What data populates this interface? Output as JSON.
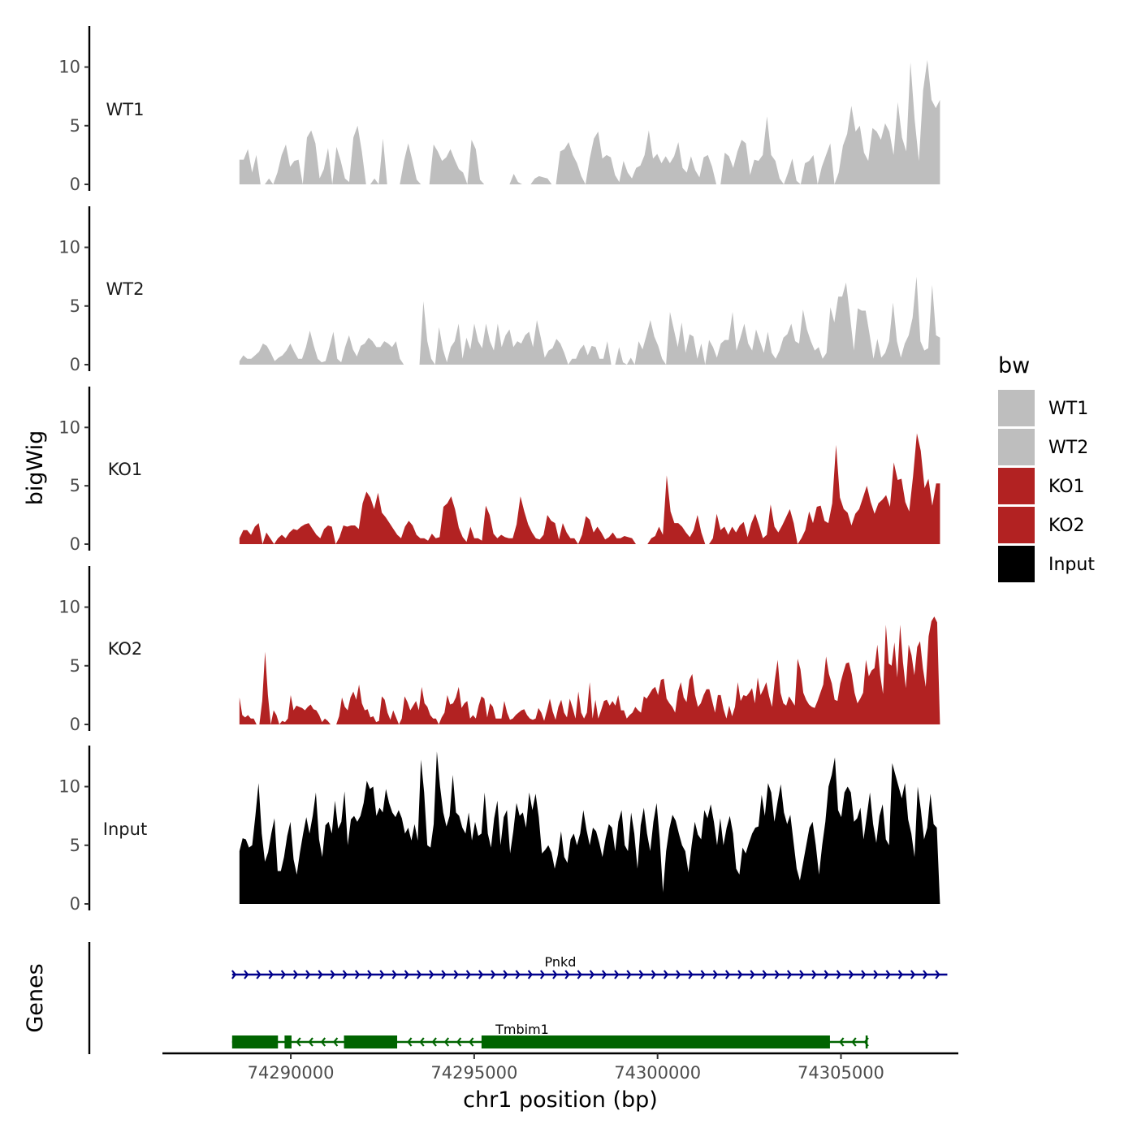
{
  "chart_data": {
    "type": "area",
    "ylabel": "bigWig",
    "xlabel": "chr1 position (bp)",
    "genes_label": "Genes",
    "xlim": [
      74286500,
      74308200
    ],
    "data_xrange": [
      74288600,
      74307700
    ],
    "ylim": [
      0,
      13.5
    ],
    "y_ticks": [
      0,
      5,
      10
    ],
    "y_tick_labels": [
      "0",
      "5",
      "10"
    ],
    "x_ticks": [
      74290000,
      74295000,
      74300000,
      74305000
    ],
    "x_tick_labels": [
      "74290000",
      "74295000",
      "74300000",
      "74305000"
    ],
    "series": [
      {
        "name": "WT1",
        "color": "#bebebe",
        "values": [
          2.1,
          2.1,
          3.0,
          1.0,
          2.5,
          0.0,
          0.0,
          0.5,
          0.0,
          1.0,
          2.5,
          3.4,
          1.5,
          2.0,
          2.1,
          0.0,
          4.0,
          4.6,
          3.5,
          0.5,
          1.3,
          3.1,
          0.0,
          3.2,
          2.0,
          0.5,
          0.2,
          4.0,
          5.0,
          2.8,
          0.0,
          0.0,
          0.5,
          0.0,
          3.9,
          0.0,
          0.0,
          0.0,
          0.0,
          2.0,
          3.5,
          2.0,
          0.4,
          0.0,
          0.0,
          0.0,
          3.4,
          2.8,
          2.0,
          2.3,
          3.0,
          2.1,
          1.3,
          1.0,
          0.0,
          3.8,
          3.0,
          0.4,
          0.0,
          0.0,
          0.0,
          0.0,
          0.0,
          0.0,
          0.0,
          0.9,
          0.2,
          0.0,
          0.0,
          0.0,
          0.5,
          0.7,
          0.6,
          0.5,
          0.0,
          0.0,
          2.8,
          3.0,
          3.6,
          2.5,
          1.8,
          0.7,
          0.0,
          2.2,
          3.9,
          4.5,
          2.2,
          2.5,
          2.3,
          0.8,
          0.2,
          2.0,
          1.0,
          0.5,
          1.4,
          1.6,
          2.5,
          4.6,
          2.2,
          2.6,
          1.8,
          2.4,
          1.8,
          2.4,
          3.6,
          1.4,
          1.0,
          2.4,
          1.2,
          0.6,
          2.3,
          2.5,
          1.5,
          0.0,
          0.0,
          2.7,
          2.4,
          1.4,
          2.8,
          3.8,
          3.5,
          0.8,
          2.1,
          2.0,
          2.5,
          5.8,
          2.5,
          2.0,
          0.5,
          0.0,
          1.0,
          2.2,
          0.3,
          0.0,
          1.8,
          2.0,
          2.5,
          0.0,
          1.5,
          2.5,
          3.5,
          0.0,
          1.0,
          3.3,
          4.3,
          6.7,
          4.5,
          5.0,
          2.7,
          2.0,
          4.8,
          4.5,
          3.8,
          5.2,
          4.5,
          2.5,
          7.0,
          4.0,
          2.8,
          10.4,
          5.5,
          2.0,
          8.0,
          10.6,
          7.2,
          6.5,
          7.2
        ]
      },
      {
        "name": "WT2",
        "color": "#bebebe",
        "values": [
          0.3,
          0.8,
          0.5,
          0.5,
          0.8,
          1.1,
          1.8,
          1.6,
          1.0,
          0.3,
          0.6,
          0.8,
          1.2,
          1.8,
          1.1,
          0.5,
          0.5,
          1.5,
          2.9,
          1.6,
          0.5,
          0.2,
          0.3,
          1.5,
          2.8,
          0.5,
          0.2,
          1.5,
          2.5,
          1.3,
          0.7,
          1.6,
          1.8,
          2.3,
          2.0,
          1.5,
          1.5,
          2.0,
          1.8,
          1.5,
          2.0,
          0.5,
          0.0,
          0.0,
          0.0,
          0.0,
          0.0,
          5.4,
          2.0,
          0.5,
          0.0,
          3.2,
          1.3,
          0.2,
          1.5,
          2.0,
          3.5,
          0.5,
          2.3,
          1.3,
          3.5,
          2.0,
          1.4,
          3.5,
          2.0,
          1.2,
          3.5,
          1.5,
          2.5,
          3.0,
          1.5,
          2.0,
          1.8,
          2.5,
          2.8,
          1.5,
          3.8,
          2.3,
          0.6,
          1.2,
          1.4,
          2.2,
          1.8,
          1.0,
          0.0,
          0.5,
          0.5,
          1.3,
          1.7,
          0.8,
          1.6,
          1.5,
          0.5,
          0.5,
          2.0,
          0.0,
          0.0,
          1.5,
          0.2,
          0.0,
          0.6,
          0.0,
          2.0,
          1.3,
          2.5,
          3.8,
          2.4,
          1.6,
          0.5,
          0.0,
          4.5,
          3.0,
          1.5,
          3.6,
          1.0,
          2.6,
          2.4,
          0.5,
          1.8,
          0.0,
          2.1,
          1.5,
          0.6,
          1.8,
          2.1,
          2.1,
          4.5,
          1.2,
          2.3,
          3.5,
          1.8,
          1.2,
          3.0,
          2.0,
          1.0,
          2.8,
          1.0,
          0.5,
          1.2,
          2.3,
          2.6,
          3.5,
          2.0,
          1.8,
          4.7,
          3.0,
          2.0,
          1.2,
          1.5,
          0.5,
          1.0,
          4.9,
          3.6,
          5.8,
          5.8,
          7.0,
          4.2,
          1.2,
          4.8,
          4.6,
          4.6,
          2.6,
          0.5,
          2.2,
          0.6,
          1.0,
          2.0,
          5.3,
          2.0,
          0.6,
          1.8,
          2.5,
          4.0,
          7.5,
          2.0,
          1.2,
          1.4,
          6.8,
          2.5,
          2.3
        ]
      },
      {
        "name": "KO1",
        "color": "#b22222",
        "values": [
          0.5,
          1.2,
          1.2,
          0.8,
          1.5,
          1.8,
          0.0,
          1.0,
          0.5,
          0.0,
          0.5,
          0.8,
          0.5,
          1.0,
          1.3,
          1.2,
          1.5,
          1.7,
          1.8,
          1.3,
          0.8,
          0.5,
          1.3,
          1.6,
          1.5,
          0.0,
          0.6,
          1.6,
          1.5,
          1.6,
          1.6,
          1.3,
          3.5,
          4.5,
          4.0,
          3.0,
          4.4,
          2.7,
          2.3,
          1.8,
          1.3,
          0.8,
          0.5,
          1.5,
          2.0,
          1.6,
          0.8,
          0.5,
          0.5,
          0.3,
          0.9,
          0.5,
          0.6,
          3.2,
          3.5,
          4.1,
          3.0,
          1.4,
          0.6,
          0.2,
          1.5,
          0.5,
          0.5,
          0.3,
          3.3,
          2.5,
          0.9,
          0.5,
          0.8,
          0.6,
          0.5,
          0.5,
          1.7,
          4.1,
          2.8,
          1.7,
          1.0,
          0.5,
          0.4,
          0.8,
          2.5,
          2.0,
          1.8,
          0.4,
          1.8,
          1.0,
          0.5,
          0.5,
          0.0,
          0.8,
          2.4,
          2.1,
          1.0,
          1.5,
          1.0,
          0.4,
          0.6,
          1.0,
          0.5,
          0.5,
          0.7,
          0.6,
          0.5,
          0.0,
          0.0,
          0.0,
          0.0,
          0.5,
          0.7,
          1.5,
          0.8,
          5.9,
          2.8,
          1.8,
          1.8,
          1.5,
          1.0,
          0.6,
          1.2,
          2.5,
          1.0,
          0.0,
          0.0,
          0.5,
          2.6,
          1.2,
          1.5,
          0.8,
          1.5,
          1.0,
          1.6,
          1.9,
          0.6,
          1.8,
          2.6,
          1.6,
          0.5,
          0.8,
          3.4,
          1.5,
          1.0,
          1.6,
          2.3,
          3.0,
          1.8,
          0.0,
          0.5,
          1.2,
          2.8,
          1.8,
          3.2,
          3.3,
          2.0,
          1.8,
          3.5,
          8.5,
          4.0,
          3.0,
          2.7,
          1.6,
          2.6,
          3.0,
          4.0,
          5.0,
          3.6,
          2.6,
          3.5,
          3.8,
          4.2,
          3.2,
          7.0,
          5.5,
          5.6,
          3.6,
          2.8,
          5.8,
          9.5,
          8.0,
          4.8,
          5.6,
          3.3,
          5.2,
          5.2
        ]
      },
      {
        "name": "KO2",
        "color": "#b22222",
        "values": [
          2.3,
          0.8,
          0.6,
          0.8,
          0.5,
          0.5,
          0.0,
          0.0,
          2.0,
          6.2,
          2.5,
          0.0,
          1.2,
          0.8,
          0.0,
          0.3,
          0.2,
          0.5,
          2.5,
          1.2,
          1.6,
          1.5,
          1.4,
          1.2,
          1.5,
          1.7,
          1.3,
          1.2,
          0.8,
          0.2,
          0.5,
          0.3,
          0.0,
          0.0,
          0.0,
          0.7,
          2.3,
          1.5,
          1.2,
          2.3,
          2.8,
          2.1,
          3.4,
          1.8,
          1.2,
          1.3,
          0.6,
          0.7,
          0.2,
          0.3,
          2.4,
          2.1,
          1.0,
          0.4,
          1.2,
          0.6,
          0.0,
          0.5,
          2.4,
          1.9,
          1.2,
          1.6,
          2.0,
          1.2,
          3.2,
          1.8,
          1.5,
          0.8,
          0.5,
          0.5,
          0.0,
          0.6,
          1.0,
          2.5,
          1.7,
          1.8,
          2.3,
          3.2,
          1.4,
          1.8,
          2.0,
          0.5,
          0.8,
          0.5,
          1.6,
          2.4,
          2.2,
          0.6,
          1.8,
          1.5,
          0.5,
          0.5,
          0.5,
          2.0,
          1.0,
          0.4,
          0.5,
          0.8,
          1.0,
          1.2,
          1.3,
          0.8,
          0.5,
          0.4,
          0.5,
          1.4,
          1.0,
          0.3,
          1.2,
          2.2,
          1.1,
          0.4,
          1.5,
          2.1,
          1.0,
          0.6,
          2.2,
          1.4,
          0.5,
          2.8,
          1.0,
          0.5,
          1.0,
          3.6,
          0.5,
          2.1,
          0.5,
          1.2,
          2.0,
          2.1,
          1.6,
          2.0,
          1.6,
          2.5,
          1.2,
          1.2,
          0.5,
          0.8,
          1.0,
          1.5,
          1.2,
          1.0,
          2.4,
          2.2,
          2.6,
          3.0,
          3.2,
          2.5,
          3.8,
          3.9,
          2.2,
          1.8,
          1.5,
          1.0,
          2.8,
          3.6,
          2.3,
          1.9,
          3.8,
          4.3,
          2.5,
          1.5,
          1.8,
          2.5,
          3.0,
          3.0,
          2.0,
          1.0,
          2.5,
          2.5,
          1.3,
          0.5,
          1.6,
          0.7,
          1.5,
          3.6,
          2.0,
          2.5,
          2.4,
          2.7,
          3.1,
          1.8,
          4.0,
          2.5,
          3.0,
          3.6,
          2.4,
          1.5,
          3.8,
          5.5,
          2.7,
          1.8,
          1.6,
          2.4,
          2.0,
          1.6,
          5.6,
          4.7,
          2.7,
          2.1,
          1.7,
          1.5,
          1.4,
          2.0,
          2.7,
          3.4,
          5.8,
          4.3,
          3.5,
          2.1,
          2.0,
          3.5,
          4.4,
          5.2,
          5.3,
          4.3,
          2.7,
          1.8,
          2.2,
          2.7,
          5.5,
          4.1,
          4.6,
          4.8,
          6.8,
          4.2,
          2.6,
          8.5,
          5.2,
          5.0,
          7.0,
          4.0,
          8.5,
          5.3,
          3.1,
          6.8,
          5.9,
          4.2,
          6.6,
          7.1,
          4.8,
          3.2,
          7.5,
          8.8,
          9.2,
          8.7,
          0.0
        ]
      },
      {
        "name": "Input",
        "color": "#000000",
        "values": [
          4.5,
          5.6,
          5.5,
          4.8,
          5.0,
          7.5,
          10.3,
          6.0,
          3.6,
          4.4,
          6.0,
          7.3,
          2.8,
          2.8,
          4.0,
          5.8,
          7.0,
          3.8,
          2.5,
          4.4,
          6.0,
          7.4,
          6.0,
          7.5,
          9.5,
          5.5,
          4.0,
          6.7,
          7.0,
          6.0,
          8.8,
          6.4,
          7.0,
          9.6,
          5.0,
          7.2,
          7.5,
          7.0,
          7.5,
          8.6,
          10.5,
          9.8,
          10.0,
          7.5,
          8.2,
          7.8,
          9.8,
          8.6,
          7.8,
          7.4,
          8.0,
          7.3,
          6.0,
          6.5,
          5.4,
          6.8,
          5.4,
          12.3,
          9.5,
          5.0,
          4.8,
          6.8,
          13.0,
          10.0,
          7.8,
          6.6,
          7.5,
          11.0,
          7.8,
          7.5,
          6.5,
          6.0,
          7.8,
          5.4,
          7.0,
          5.8,
          6.0,
          9.5,
          6.0,
          4.8,
          7.3,
          8.8,
          5.0,
          7.4,
          8.0,
          4.3,
          6.2,
          8.6,
          7.5,
          7.8,
          6.5,
          9.5,
          8.0,
          9.4,
          7.4,
          4.3,
          4.6,
          5.0,
          4.4,
          3.0,
          4.2,
          6.2,
          4.0,
          3.5,
          5.5,
          6.0,
          5.0,
          6.0,
          8.0,
          6.3,
          5.0,
          6.5,
          6.2,
          5.2,
          4.0,
          5.6,
          6.8,
          6.5,
          4.5,
          7.0,
          8.0,
          5.0,
          4.5,
          7.8,
          6.0,
          3.0,
          6.7,
          8.2,
          6.0,
          4.5,
          7.0,
          8.6,
          5.5,
          1.0,
          4.5,
          6.4,
          7.6,
          7.1,
          6.0,
          5.0,
          4.5,
          2.7,
          5.0,
          7.0,
          5.9,
          5.5,
          8.0,
          7.3,
          8.5,
          7.0,
          5.0,
          7.3,
          5.0,
          6.5,
          7.5,
          6.0,
          3.0,
          2.5,
          4.8,
          4.3,
          5.2,
          6.0,
          6.5,
          6.6,
          9.3,
          7.5,
          10.3,
          9.5,
          7.0,
          8.7,
          10.2,
          7.8,
          6.8,
          7.6,
          5.3,
          3.0,
          2.0,
          3.5,
          5.0,
          6.5,
          7.0,
          5.0,
          2.5,
          5.0,
          7.0,
          10.0,
          11.0,
          12.5,
          8.0,
          7.4,
          9.5,
          10.0,
          9.5,
          7.0,
          7.3,
          8.2,
          5.5,
          7.5,
          9.5,
          6.8,
          5.2,
          7.5,
          8.5,
          5.5,
          5.0,
          12.0,
          11.0,
          10.0,
          9.0,
          10.3,
          7.2,
          6.0,
          4.0,
          10.0,
          8.0,
          5.5,
          6.5,
          9.4,
          6.8,
          6.5,
          0.0
        ]
      }
    ],
    "legend": {
      "title": "bw",
      "entries": [
        "WT1",
        "WT2",
        "KO1",
        "KO2",
        "Input"
      ],
      "colors": [
        "#bebebe",
        "#bebebe",
        "#b22222",
        "#b22222",
        "#000000"
      ]
    },
    "genes": [
      {
        "name": "Pnkd",
        "strand": "+",
        "color": "#00008b",
        "start": 74288400,
        "end": 74307900,
        "exons": []
      },
      {
        "name": "Tmbim1",
        "strand": "-",
        "color": "#006400",
        "start": 74288400,
        "end": 74305700,
        "exons": [
          [
            74288400,
            74289650
          ],
          [
            74289830,
            74290020
          ],
          [
            74291450,
            74292900
          ],
          [
            74295200,
            74304700
          ]
        ]
      }
    ]
  }
}
